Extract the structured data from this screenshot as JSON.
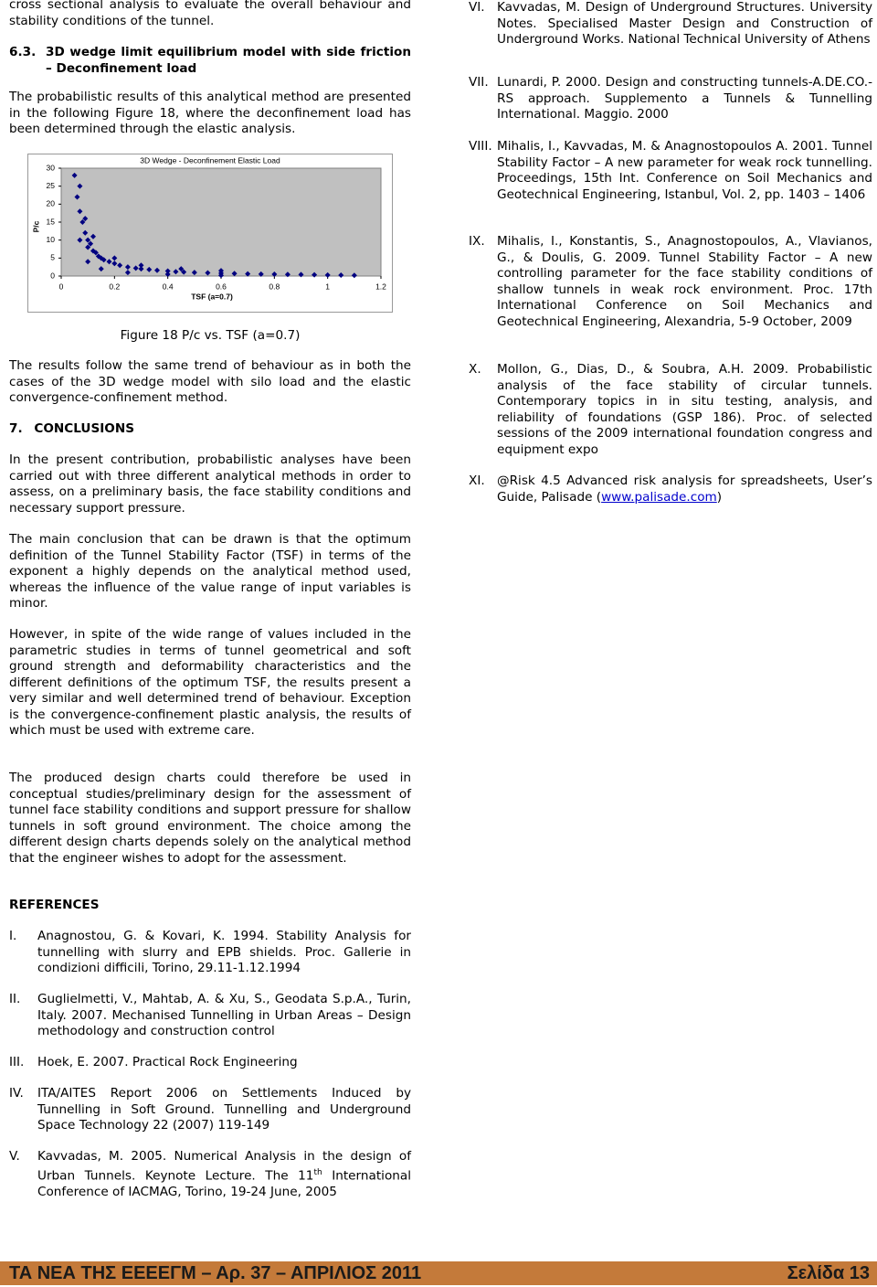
{
  "chart_data": {
    "type": "scatter",
    "title": "3D Wedge - Deconfinement Elastic Load",
    "x_label": "TSF (a=0.7)",
    "y_label": "P/c",
    "x": [
      0.05,
      0.06,
      0.07,
      0.08,
      0.09,
      0.1,
      0.1,
      0.11,
      0.12,
      0.13,
      0.14,
      0.15,
      0.16,
      0.18,
      0.2,
      0.22,
      0.25,
      0.28,
      0.3,
      0.33,
      0.36,
      0.4,
      0.43,
      0.46,
      0.5,
      0.55,
      0.6,
      0.65,
      0.7,
      0.75,
      0.8,
      0.85,
      0.9,
      0.95,
      1.0,
      1.05,
      1.1,
      0.07,
      0.09,
      0.12,
      0.2,
      0.3,
      0.45,
      0.6,
      0.07,
      0.1,
      0.15,
      0.25,
      0.4,
      0.6
    ],
    "series": [
      {
        "name": "P/c",
        "color": "#000080",
        "values": [
          28,
          22,
          18,
          15,
          12,
          10,
          8,
          9,
          7,
          6.5,
          5.5,
          5,
          4.5,
          4,
          3.5,
          3,
          2.5,
          2.2,
          2,
          1.8,
          1.6,
          1.4,
          1.2,
          1.1,
          1,
          0.9,
          0.8,
          0.7,
          0.6,
          0.55,
          0.5,
          0.45,
          0.4,
          0.35,
          0.3,
          0.25,
          0.2,
          25,
          16,
          11,
          5,
          3,
          2,
          1.5,
          10,
          4,
          2,
          1,
          0.5,
          0.2
        ]
      }
    ],
    "xlim": [
      0,
      1.2
    ],
    "xticks": [
      0,
      0.2,
      0.4,
      0.6,
      0.8,
      1,
      1.2
    ],
    "ylim": [
      0,
      30
    ],
    "yticks": [
      0,
      5,
      10,
      15,
      20,
      25,
      30
    ],
    "grid": false,
    "plot_background": "#c0c0c0"
  },
  "left": {
    "intro": "cross sectional analysis to evaluate the overall behaviour and stability conditions of the tunnel.",
    "section_number": "6.3.",
    "section_title": "3D wedge limit equilibrium model with side friction – Deconfinement load",
    "para1": "The probabilistic results of this analytical method are presented in the following Figure 18, where the deconfinement load has been determined through the elastic analysis.",
    "caption": "Figure 18 P/c vs. TSF (a=0.7)",
    "para2": "The results follow the same trend of behaviour as in both the cases of the 3D wedge model with silo load and the elastic convergence-confinement method.",
    "conclusions_number": "7.",
    "conclusions_title": "CONCLUSIONS",
    "para3": "In the present contribution, probabilistic analyses have been carried out with three different analytical methods in order to assess, on a preliminary basis, the face stability conditions and necessary support pressure.",
    "para4": "The main conclusion that can be drawn is that the optimum definition of the Tunnel Stability Factor (TSF) in terms of the exponent a highly depends on the analytical method used, whereas the influence of the value range of input variables is minor.",
    "para5": "However, in spite of the wide range of values included in the parametric studies in terms of tunnel geometrical and soft ground strength and deformability characteristics and the different definitions of the optimum TSF, the results present a very similar and well determined trend of behaviour. Exception is the convergence-confinement plastic analysis, the results of which must be used with extreme care.",
    "para6": "The produced design charts could therefore be used in conceptual studies/preliminary design for the assessment of tunnel face stability conditions and support pressure for shallow tunnels in soft ground environment. The choice among the different design charts depends solely on the analytical method that the engineer wishes to adopt for the assessment.",
    "references_title": "REFERENCES"
  },
  "references": [
    {
      "num": "I.",
      "text": "Anagnostou, G. & Kovari, K. 1994. Stability Analysis for tunnelling with slurry and EPB shields. Proc. Gallerie in condizioni difficili, Torino, 29.11-1.12.1994"
    },
    {
      "num": "II.",
      "text": "Guglielmetti, V., Mahtab, A. & Xu, S., Geodata S.p.A., Turin, Italy. 2007. Mechanised Tunnelling in Urban Areas – Design methodology and construction control"
    },
    {
      "num": "III.",
      "text": "Hoek, E. 2007. Practical Rock Engineering"
    },
    {
      "num": "IV.",
      "text": "ITA/AITES Report 2006 on Settlements Induced by Tunnelling in Soft Ground. Tunnelling and Underground Space Technology 22 (2007) 119-149"
    },
    {
      "num": "V.",
      "text": "Kavvadas, M. 2005. Numerical Analysis in the design of Urban Tunnels. Keynote Lecture. The 11",
      "sup": "th",
      "rest": " International Conference of IACMAG, Torino, 19-24 June, 2005"
    },
    {
      "num": "VI.",
      "text": "Kavvadas, M. Design of Underground Structures. University Notes. Specialised Master Design and Construction of Underground Works. National Technical University of Athens"
    },
    {
      "num": "VII.",
      "text": "Lunardi, P. 2000. Design and constructing tunnels-A.DE.CO.-RS approach. Supplemento a Tunnels & Tunnelling International. Maggio. 2000"
    },
    {
      "num": "VIII.",
      "text": "Mihalis, I., Kavvadas, M. & Anagnostopoulos A. 2001. Tunnel Stability Factor – A new parameter for weak rock tunnelling. Proceedings, 15th Int. Conference on Soil Mechanics and Geotechnical Engineering, Istanbul, Vol. 2, pp. 1403 – 1406"
    },
    {
      "num": "IX.",
      "text": "Mihalis, I., Konstantis, S., Anagnostopoulos, A., Vlavianos, G., & Doulis, G. 2009. Tunnel Stability Factor – A new controlling parameter for the face stability conditions of shallow tunnels in weak rock environment. Proc. 17th International Conference on Soil Mechanics and Geotechnical Engineering, Alexandria, 5-9 October, 2009"
    },
    {
      "num": "X.",
      "text": "Mollon, G., Dias, D., & Soubra, A.H. 2009. Probabilistic analysis of the face stability of circular tunnels. Contemporary topics in in situ testing, analysis, and reliability of foundations (GSP 186). Proc. of selected sessions of the 2009 international foundation congress and equipment expo"
    },
    {
      "num": "XI.",
      "text": "@Risk 4.5 Advanced risk analysis for spreadsheets, User’s Guide, Palisade (",
      "link": "www.palisade.com",
      "rest": ")"
    }
  ],
  "footer": {
    "left": "ΤΑ ΝΕΑ ΤΗΣ ΕΕΕΕΓΜ – Αρ. 37 – ΑΠΡΙΛΙΟΣ 2011",
    "right": "Σελίδα 13"
  }
}
